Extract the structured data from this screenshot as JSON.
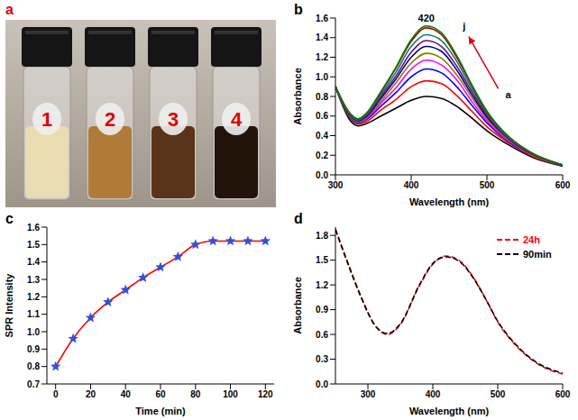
{
  "photo": {
    "panel_label": "a",
    "vials": [
      "1",
      "2",
      "3",
      "4"
    ]
  },
  "chart_data": [
    {
      "type": "line",
      "panel_label": "b",
      "x_label": "Wavelength (nm)",
      "y_label": "Absorbance",
      "annotations": [
        "420",
        "a",
        "j"
      ],
      "x": [
        300,
        320,
        330,
        340,
        360,
        380,
        400,
        420,
        440,
        460,
        480,
        500,
        530,
        560,
        600
      ],
      "xlim": [
        300,
        600
      ],
      "xticks": [
        300,
        400,
        500,
        600
      ],
      "ylim": [
        0,
        1.6
      ],
      "yticks": [
        {
          "value": 0,
          "label": "0.0"
        },
        0.2,
        0.4,
        0.6,
        0.8,
        {
          "value": 1,
          "label": "1.0"
        },
        1.2,
        1.4,
        1.6
      ],
      "grid": false,
      "series": [
        {
          "color": "#000000",
          "values": [
            0.9,
            0.55,
            0.5,
            0.52,
            0.6,
            0.68,
            0.76,
            0.8,
            0.78,
            0.7,
            0.58,
            0.45,
            0.3,
            0.18,
            0.09
          ]
        },
        {
          "color": "#ff0000",
          "values": [
            0.9,
            0.57,
            0.52,
            0.54,
            0.66,
            0.77,
            0.9,
            0.96,
            0.93,
            0.81,
            0.65,
            0.49,
            0.32,
            0.19,
            0.09
          ]
        },
        {
          "color": "#0000ff",
          "values": [
            0.9,
            0.58,
            0.53,
            0.56,
            0.7,
            0.84,
            1.0,
            1.08,
            1.04,
            0.9,
            0.71,
            0.53,
            0.33,
            0.2,
            0.09
          ]
        },
        {
          "color": "#ff00ff",
          "values": [
            0.9,
            0.59,
            0.54,
            0.57,
            0.73,
            0.89,
            1.08,
            1.17,
            1.12,
            0.97,
            0.75,
            0.55,
            0.34,
            0.2,
            0.1
          ]
        },
        {
          "color": "#808000",
          "values": [
            0.9,
            0.59,
            0.54,
            0.58,
            0.75,
            0.94,
            1.14,
            1.24,
            1.19,
            1.02,
            0.79,
            0.57,
            0.35,
            0.2,
            0.1
          ]
        },
        {
          "color": "#000080",
          "values": [
            0.9,
            0.6,
            0.55,
            0.59,
            0.78,
            0.98,
            1.2,
            1.31,
            1.26,
            1.07,
            0.82,
            0.59,
            0.36,
            0.21,
            0.1
          ]
        },
        {
          "color": "#800080",
          "values": [
            0.9,
            0.61,
            0.56,
            0.6,
            0.8,
            1.01,
            1.25,
            1.37,
            1.31,
            1.11,
            0.85,
            0.61,
            0.36,
            0.21,
            0.1
          ]
        },
        {
          "color": "#008080",
          "values": [
            0.9,
            0.61,
            0.56,
            0.61,
            0.82,
            1.05,
            1.31,
            1.43,
            1.37,
            1.16,
            0.88,
            0.63,
            0.37,
            0.22,
            0.1
          ]
        },
        {
          "color": "#c00000",
          "values": [
            0.9,
            0.62,
            0.57,
            0.62,
            0.84,
            1.09,
            1.36,
            1.5,
            1.43,
            1.2,
            0.91,
            0.64,
            0.38,
            0.22,
            0.1
          ]
        },
        {
          "color": "#008000",
          "values": [
            0.9,
            0.62,
            0.57,
            0.62,
            0.85,
            1.1,
            1.38,
            1.52,
            1.45,
            1.22,
            0.92,
            0.65,
            0.38,
            0.22,
            0.1
          ]
        }
      ]
    },
    {
      "type": "line",
      "panel_label": "c",
      "x_label": "Time (min)",
      "y_label": "SPR Intensity",
      "x": [
        0,
        10,
        20,
        30,
        40,
        50,
        60,
        70,
        80,
        90,
        100,
        110,
        120
      ],
      "xlim": [
        -5,
        125
      ],
      "xticks": [
        0,
        20,
        40,
        60,
        80,
        100,
        120
      ],
      "ylim": [
        0.7,
        1.6
      ],
      "yticks": [
        0.7,
        0.8,
        0.9,
        {
          "value": 1,
          "label": "1.0"
        },
        1.1,
        1.2,
        1.3,
        1.4,
        1.5,
        1.6
      ],
      "grid": false,
      "series": [
        {
          "color": "#ff0000",
          "marker": "star",
          "values": [
            0.8,
            0.96,
            1.08,
            1.17,
            1.24,
            1.31,
            1.37,
            1.43,
            1.5,
            1.52,
            1.52,
            1.52,
            1.52
          ]
        }
      ]
    },
    {
      "type": "line",
      "panel_label": "d",
      "x_label": "Wavelength (nm)",
      "y_label": "Absorbance",
      "legend": "upper right",
      "x": [
        250,
        270,
        290,
        310,
        330,
        350,
        380,
        400,
        420,
        440,
        460,
        480,
        500,
        530,
        560,
        600
      ],
      "xlim": [
        250,
        600
      ],
      "xticks": [
        300,
        400,
        500,
        600
      ],
      "ylim": [
        0,
        1.9
      ],
      "yticks": [
        {
          "value": 0,
          "label": "0.0"
        },
        0.3,
        0.6,
        0.9,
        1.2,
        1.5,
        1.8
      ],
      "grid": false,
      "series": [
        {
          "name": "24h",
          "color": "#ff0000",
          "line_style": "dashed",
          "values": [
            1.88,
            1.45,
            1.05,
            0.72,
            0.6,
            0.72,
            1.2,
            1.45,
            1.55,
            1.5,
            1.32,
            1.05,
            0.75,
            0.45,
            0.25,
            0.12
          ]
        },
        {
          "name": "90min",
          "color": "#000000",
          "line_style": "dashed",
          "values": [
            1.87,
            1.44,
            1.04,
            0.72,
            0.61,
            0.73,
            1.21,
            1.46,
            1.54,
            1.49,
            1.31,
            1.05,
            0.76,
            0.46,
            0.26,
            0.13
          ]
        }
      ]
    }
  ]
}
